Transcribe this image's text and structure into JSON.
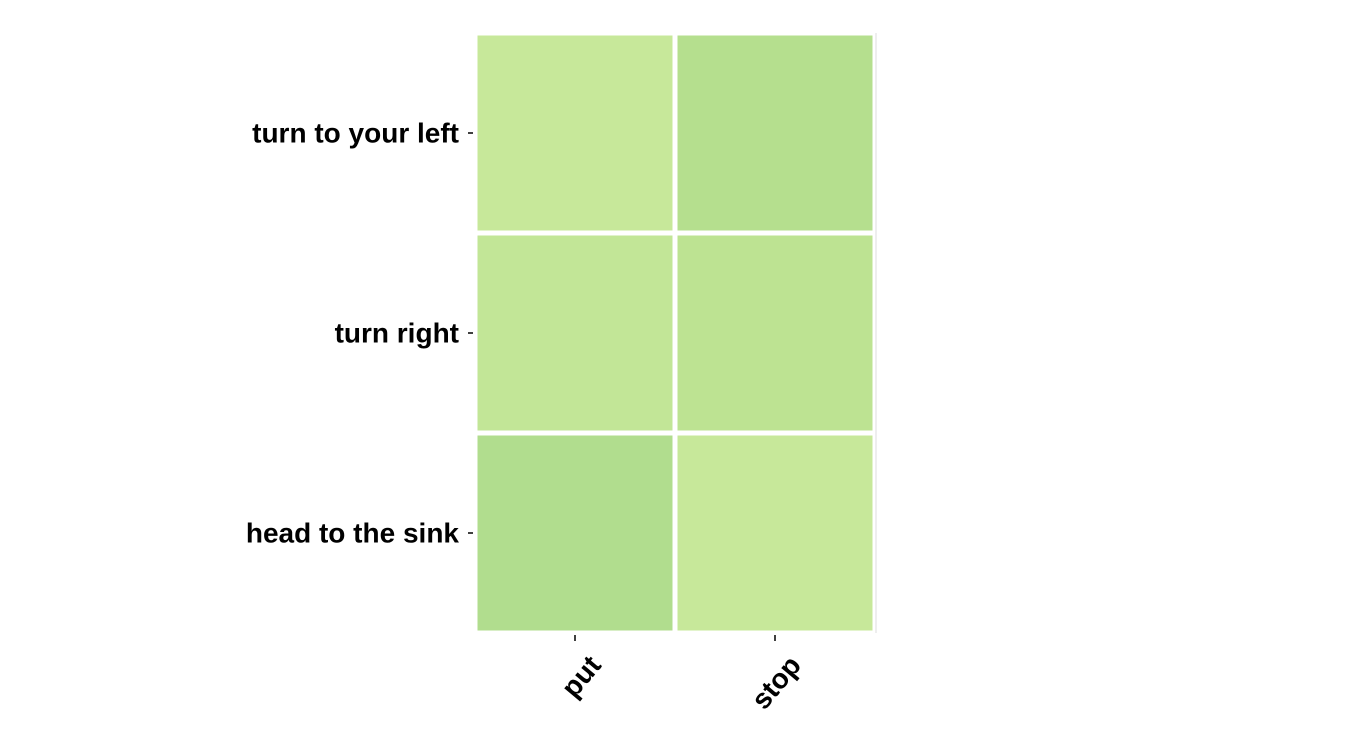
{
  "chart_data": {
    "type": "heatmap",
    "title": "",
    "xlabel": "",
    "ylabel": "",
    "x_categories": [
      "put",
      "stop"
    ],
    "y_categories": [
      "turn to your left",
      "turn right",
      "head to the sink"
    ],
    "cell_colors": [
      [
        "#c7e89a",
        "#b5df8e"
      ],
      [
        "#c2e697",
        "#bde392"
      ],
      [
        "#b1dd8e",
        "#c7e89a"
      ]
    ],
    "grid": false,
    "legend": "none"
  }
}
